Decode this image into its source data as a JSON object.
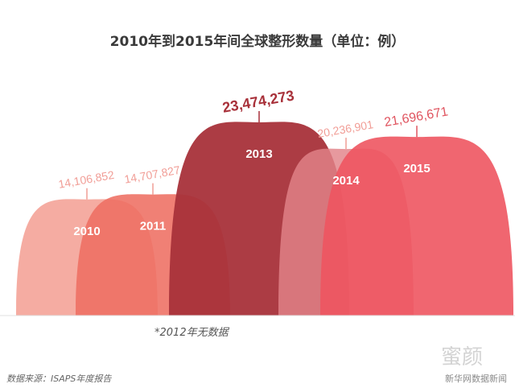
{
  "title": "2010年到2015年间全球整形数量（单位：例）",
  "note": "*2012年无数据",
  "source": "数据来源：ISAPS年度报告",
  "credit": "新华网数据新闻",
  "watermark": "蜜颜",
  "chart_data": {
    "type": "area",
    "title": "2010年到2015年间全球整形数量（单位：例）",
    "categories": [
      "2010",
      "2011",
      "2013",
      "2014",
      "2015"
    ],
    "values": [
      14106852,
      14707827,
      23474273,
      20236901,
      21696671
    ],
    "value_labels": [
      "14,106,852",
      "14,707,827",
      "23,474,273",
      "20,236,901",
      "21,696,671"
    ],
    "colors": [
      "#f4a59a",
      "#ee6e62",
      "#a8313a",
      "#e28289",
      "#ee5560"
    ],
    "label_colors": [
      "#f19d96",
      "#f19d96",
      "#a8313a",
      "#f19d96",
      "#e05560"
    ],
    "note": "*2012年无数据"
  }
}
